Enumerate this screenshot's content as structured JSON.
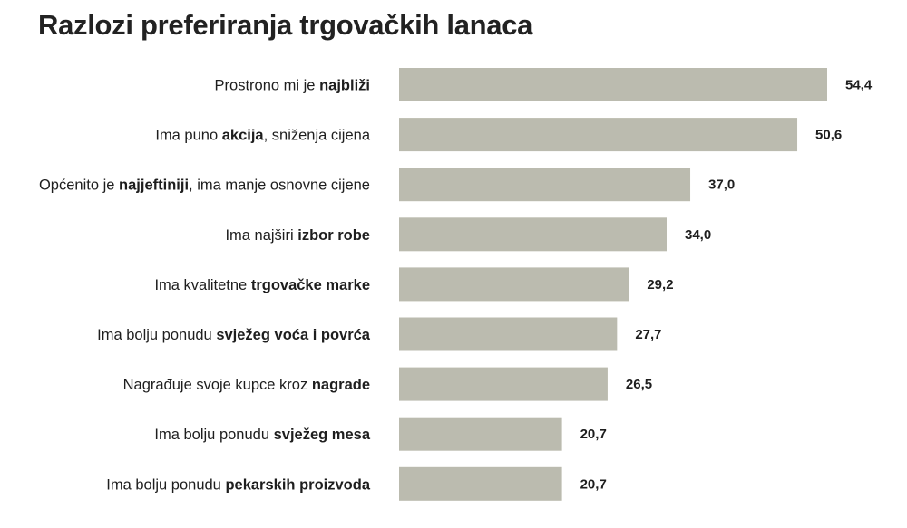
{
  "title": "Razlozi preferiranja trgovačkih lanaca",
  "colors": {
    "bar": "#bbbbaf",
    "text": "#1e1e1e"
  },
  "chart_data": {
    "type": "bar",
    "orientation": "horizontal",
    "title": "Razlozi preferiranja trgovačkih lanaca",
    "categories": [
      "Prostrono mi je najbliži",
      "Ima puno akcija, sniženja cijena",
      "Općenito je najjeftiniji, ima manje osnovne cijene",
      "Ima najširi izbor robe",
      "Ima kvalitetne trgovačke marke",
      "Ima bolju ponudu svježeg voća i povrća",
      "Nagrađuje svoje kupce kroz nagrade",
      "Ima bolju ponudu svježeg mesa",
      "Ima bolju ponudu pekarskih proizvoda"
    ],
    "label_parts": [
      [
        {
          "text": "Prostrono mi je ",
          "bold": false
        },
        {
          "text": "najbliži",
          "bold": true
        }
      ],
      [
        {
          "text": "Ima puno ",
          "bold": false
        },
        {
          "text": "akcija",
          "bold": true
        },
        {
          "text": ", sniženja cijena",
          "bold": false
        }
      ],
      [
        {
          "text": "Općenito je ",
          "bold": false
        },
        {
          "text": "najjeftiniji",
          "bold": true
        },
        {
          "text": ", ima manje osnovne cijene",
          "bold": false
        }
      ],
      [
        {
          "text": "Ima najširi ",
          "bold": false
        },
        {
          "text": "izbor robe",
          "bold": true
        }
      ],
      [
        {
          "text": "Ima kvalitetne ",
          "bold": false
        },
        {
          "text": "trgovačke marke",
          "bold": true
        }
      ],
      [
        {
          "text": "Ima bolju ponudu ",
          "bold": false
        },
        {
          "text": "svježeg voća i povrća",
          "bold": true
        }
      ],
      [
        {
          "text": "Nagrađuje svoje kupce kroz ",
          "bold": false
        },
        {
          "text": "nagrade",
          "bold": true
        }
      ],
      [
        {
          "text": "Ima bolju ponudu ",
          "bold": false
        },
        {
          "text": "svježeg mesa",
          "bold": true
        }
      ],
      [
        {
          "text": "Ima bolju ponudu ",
          "bold": false
        },
        {
          "text": "pekarskih proizvoda",
          "bold": true
        }
      ]
    ],
    "values": [
      54.4,
      50.6,
      37.0,
      34.0,
      29.2,
      27.7,
      26.5,
      20.7,
      20.7
    ],
    "value_labels": [
      "54,4",
      "50,6",
      "37,0",
      "34,0",
      "29,2",
      "27,7",
      "26,5",
      "20,7",
      "20,7"
    ],
    "xlim": [
      0,
      54.4
    ],
    "grid": false,
    "legend": "none"
  }
}
